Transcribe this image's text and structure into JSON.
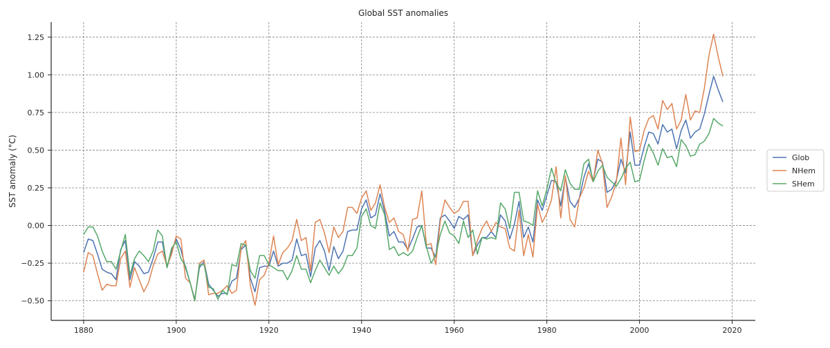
{
  "chart_data": {
    "type": "line",
    "title": "Global SST anomalies",
    "xlabel": "",
    "ylabel": "SST anomaly (°C)",
    "xlim": [
      1873,
      2025
    ],
    "ylim": [
      -0.63,
      1.35
    ],
    "xticks": [
      1880,
      1900,
      1920,
      1940,
      1960,
      1980,
      2000,
      2020
    ],
    "yticks": [
      -0.5,
      -0.25,
      0.0,
      0.25,
      0.5,
      0.75,
      1.0,
      1.25
    ],
    "ytick_labels": [
      "−0.50",
      "−0.25",
      "0.00",
      "0.25",
      "0.50",
      "0.75",
      "1.00",
      "1.25"
    ],
    "grid": true,
    "legend_position": "right",
    "x_start": 1880,
    "series": [
      {
        "name": "Glob",
        "color": "#4c72b0",
        "values": [
          -0.18,
          -0.09,
          -0.1,
          -0.19,
          -0.29,
          -0.31,
          -0.32,
          -0.36,
          -0.16,
          -0.1,
          -0.36,
          -0.24,
          -0.27,
          -0.32,
          -0.31,
          -0.22,
          -0.11,
          -0.11,
          -0.28,
          -0.17,
          -0.09,
          -0.16,
          -0.28,
          -0.38,
          -0.49,
          -0.28,
          -0.24,
          -0.39,
          -0.43,
          -0.47,
          -0.45,
          -0.45,
          -0.37,
          -0.35,
          -0.16,
          -0.13,
          -0.35,
          -0.44,
          -0.28,
          -0.27,
          -0.27,
          -0.17,
          -0.27,
          -0.25,
          -0.25,
          -0.23,
          -0.09,
          -0.2,
          -0.19,
          -0.34,
          -0.15,
          -0.1,
          -0.17,
          -0.3,
          -0.14,
          -0.22,
          -0.17,
          -0.04,
          -0.03,
          -0.03,
          0.11,
          0.17,
          0.05,
          0.07,
          0.21,
          0.09,
          -0.07,
          -0.04,
          -0.11,
          -0.11,
          -0.16,
          -0.09,
          -0.01,
          0.0,
          -0.15,
          -0.15,
          -0.21,
          0.05,
          0.07,
          0.03,
          -0.02,
          0.06,
          0.04,
          0.07,
          -0.2,
          -0.13,
          -0.08,
          -0.08,
          -0.04,
          -0.08,
          0.07,
          0.03,
          -0.09,
          0.01,
          0.16,
          -0.08,
          -0.01,
          -0.11,
          0.17,
          0.1,
          0.2,
          0.3,
          0.29,
          0.13,
          0.32,
          0.16,
          0.12,
          0.18,
          0.32,
          0.41,
          0.3,
          0.44,
          0.42,
          0.22,
          0.24,
          0.3,
          0.44,
          0.35,
          0.62,
          0.4,
          0.4,
          0.52,
          0.62,
          0.61,
          0.54,
          0.67,
          0.62,
          0.64,
          0.51,
          0.63,
          0.7,
          0.58,
          0.62,
          0.64,
          0.74,
          0.87,
          0.99,
          0.9,
          0.82
        ]
      },
      {
        "name": "NHem",
        "color": "#dd8452",
        "values": [
          -0.31,
          -0.18,
          -0.2,
          -0.32,
          -0.43,
          -0.39,
          -0.4,
          -0.4,
          -0.22,
          -0.17,
          -0.41,
          -0.28,
          -0.36,
          -0.44,
          -0.38,
          -0.27,
          -0.19,
          -0.17,
          -0.27,
          -0.19,
          -0.07,
          -0.09,
          -0.35,
          -0.38,
          -0.5,
          -0.25,
          -0.23,
          -0.46,
          -0.45,
          -0.45,
          -0.43,
          -0.4,
          -0.45,
          -0.43,
          -0.15,
          -0.1,
          -0.4,
          -0.53,
          -0.36,
          -0.33,
          -0.25,
          -0.07,
          -0.26,
          -0.18,
          -0.15,
          -0.1,
          0.04,
          -0.1,
          -0.08,
          -0.3,
          0.02,
          0.04,
          -0.05,
          -0.18,
          -0.01,
          -0.08,
          -0.04,
          0.12,
          0.12,
          0.08,
          0.18,
          0.23,
          0.1,
          0.15,
          0.27,
          0.12,
          0.02,
          0.05,
          -0.04,
          -0.06,
          -0.17,
          0.04,
          0.05,
          0.23,
          -0.13,
          -0.12,
          -0.26,
          0.03,
          0.17,
          0.12,
          0.08,
          0.1,
          0.16,
          0.16,
          -0.2,
          -0.1,
          -0.02,
          0.03,
          -0.04,
          0.02,
          -0.01,
          -0.02,
          -0.15,
          -0.17,
          0.1,
          -0.2,
          -0.06,
          -0.21,
          0.14,
          0.02,
          0.08,
          0.17,
          0.39,
          0.05,
          0.33,
          0.04,
          -0.01,
          0.18,
          0.25,
          0.36,
          0.29,
          0.5,
          0.41,
          0.12,
          0.19,
          0.29,
          0.58,
          0.27,
          0.72,
          0.49,
          0.5,
          0.63,
          0.71,
          0.73,
          0.64,
          0.83,
          0.77,
          0.81,
          0.64,
          0.7,
          0.87,
          0.7,
          0.76,
          0.75,
          0.91,
          1.13,
          1.27,
          1.12,
          0.99
        ]
      },
      {
        "name": "SHem",
        "color": "#55a868",
        "values": [
          -0.06,
          -0.01,
          -0.01,
          -0.07,
          -0.17,
          -0.24,
          -0.24,
          -0.29,
          -0.17,
          -0.06,
          -0.33,
          -0.22,
          -0.17,
          -0.2,
          -0.24,
          -0.17,
          -0.03,
          -0.07,
          -0.28,
          -0.15,
          -0.11,
          -0.22,
          -0.27,
          -0.38,
          -0.5,
          -0.26,
          -0.26,
          -0.41,
          -0.42,
          -0.49,
          -0.43,
          -0.46,
          -0.26,
          -0.27,
          -0.12,
          -0.13,
          -0.3,
          -0.35,
          -0.2,
          -0.2,
          -0.26,
          -0.28,
          -0.3,
          -0.3,
          -0.36,
          -0.3,
          -0.2,
          -0.29,
          -0.29,
          -0.38,
          -0.3,
          -0.23,
          -0.28,
          -0.33,
          -0.27,
          -0.32,
          -0.28,
          -0.2,
          -0.2,
          -0.15,
          0.06,
          0.11,
          0.0,
          -0.02,
          0.15,
          0.07,
          -0.16,
          -0.14,
          -0.2,
          -0.18,
          -0.2,
          -0.17,
          -0.08,
          0.0,
          -0.14,
          -0.25,
          -0.2,
          -0.06,
          0.03,
          -0.05,
          -0.07,
          -0.12,
          0.03,
          -0.08,
          -0.03,
          -0.19,
          -0.08,
          -0.09,
          -0.08,
          -0.09,
          0.15,
          0.11,
          -0.02,
          0.22,
          0.22,
          0.03,
          0.02,
          0.0,
          0.23,
          0.13,
          0.24,
          0.38,
          0.28,
          0.23,
          0.37,
          0.28,
          0.24,
          0.24,
          0.41,
          0.44,
          0.29,
          0.36,
          0.4,
          0.32,
          0.29,
          0.26,
          0.31,
          0.38,
          0.42,
          0.29,
          0.3,
          0.43,
          0.54,
          0.48,
          0.4,
          0.51,
          0.45,
          0.46,
          0.39,
          0.57,
          0.53,
          0.46,
          0.47,
          0.54,
          0.56,
          0.61,
          0.71,
          0.68,
          0.66
        ]
      }
    ]
  }
}
